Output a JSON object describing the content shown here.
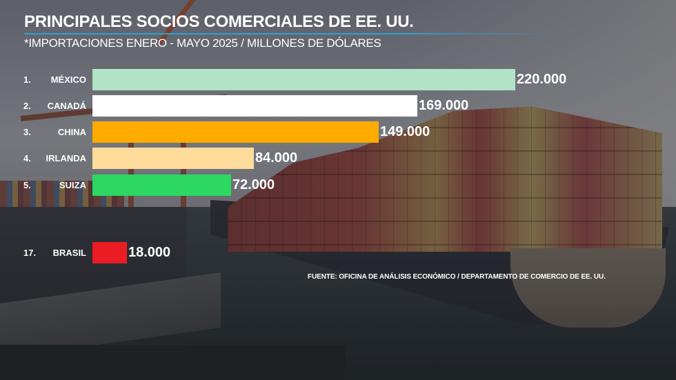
{
  "header": {
    "title": "PRINCIPALES SOCIOS COMERCIALES DE EE. UU.",
    "subtitle": "*IMPORTACIONES ENERO - MAYO 2025 / MILLONES DE DÓLARES"
  },
  "bars": [
    {
      "rank": "1.",
      "country": "MÉXICO",
      "value": 220000,
      "label": "220.000",
      "color": "#b3e3c6"
    },
    {
      "rank": "2.",
      "country": "CANADÁ",
      "value": 169000,
      "label": "169.000",
      "color": "#ffffff"
    },
    {
      "rank": "3.",
      "country": "CHINA",
      "value": 149000,
      "label": "149.000",
      "color": "#ffab00"
    },
    {
      "rank": "4.",
      "country": "IRLANDA",
      "value": 84000,
      "label": "84.000",
      "color": "#ffdc9c"
    },
    {
      "rank": "5.",
      "country": "SUIZA",
      "value": 72000,
      "label": "72.000",
      "color": "#2bd862"
    },
    {
      "rank": "17.",
      "country": "BRASIL",
      "value": 18000,
      "label": "18.000",
      "color": "#ec1c24"
    }
  ],
  "source": "FUENTE: OFICINA DE ANÁLISIS ECONÓMICO / DEPARTAMENTO DE COMERCIO DE EE. UU.",
  "colors": {
    "accent_rule": "#2aa3d6",
    "text": "#ffffff"
  },
  "chart_data": {
    "type": "bar",
    "orientation": "horizontal",
    "title": "PRINCIPALES SOCIOS COMERCIALES DE EE. UU.",
    "subtitle": "*IMPORTACIONES ENERO - MAYO 2025 / MILLONES DE DÓLARES",
    "categories": [
      "1. MÉXICO",
      "2. CANADÁ",
      "3. CHINA",
      "4. IRLANDA",
      "5. SUIZA",
      "17. BRASIL"
    ],
    "values": [
      220000,
      169000,
      149000,
      84000,
      72000,
      18000
    ],
    "value_labels": [
      "220.000",
      "169.000",
      "149.000",
      "84.000",
      "72.000",
      "18.000"
    ],
    "colors": [
      "#b3e3c6",
      "#ffffff",
      "#ffab00",
      "#ffdc9c",
      "#2bd862",
      "#ec1c24"
    ],
    "xlabel": "",
    "ylabel": "",
    "unit": "Millones de dólares",
    "grid": false,
    "legend": null,
    "annotation": "FUENTE: OFICINA DE ANÁLISIS ECONÓMICO / DEPARTAMENTO DE COMERCIO DE EE. UU."
  }
}
